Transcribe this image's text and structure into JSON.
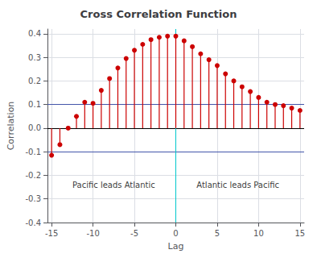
{
  "chart_data": {
    "type": "stem",
    "title": "Cross Correlation Function",
    "xlabel": "Lag",
    "ylabel": "Correlation",
    "x": [
      -15,
      -14,
      -13,
      -12,
      -11,
      -10,
      -9,
      -8,
      -7,
      -6,
      -5,
      -4,
      -3,
      -2,
      -1,
      0,
      1,
      2,
      3,
      4,
      5,
      6,
      7,
      8,
      9,
      10,
      11,
      12,
      13,
      14,
      15
    ],
    "values": [
      -0.115,
      -0.07,
      0.0,
      0.05,
      0.11,
      0.105,
      0.16,
      0.21,
      0.255,
      0.295,
      0.33,
      0.355,
      0.375,
      0.385,
      0.39,
      0.39,
      0.37,
      0.345,
      0.315,
      0.29,
      0.265,
      0.23,
      0.2,
      0.175,
      0.155,
      0.13,
      0.11,
      0.1,
      0.095,
      0.085,
      0.075
    ],
    "color": "#cc0000",
    "marker": "o",
    "xlim": [
      -15.5,
      15.5
    ],
    "ylim": [
      -0.4,
      0.42
    ],
    "xticks": [
      -15,
      -10,
      -5,
      0,
      5,
      10,
      15
    ],
    "yticks": [
      -0.4,
      -0.3,
      -0.2,
      -0.1,
      {
        "value": 0,
        "label": "0.0"
      },
      0.1,
      0.2,
      0.3,
      0.4
    ],
    "grid": true,
    "hlines": [
      {
        "y": 0.1,
        "color": "#4455aa"
      },
      {
        "y": -0.1,
        "color": "#4455aa"
      },
      {
        "y": 0,
        "color": "#000000"
      }
    ],
    "vlines": [
      {
        "x": 0,
        "color": "#00c8cc"
      }
    ],
    "annotations": [
      {
        "text": "Pacific leads Atlantic",
        "x": -7.5,
        "y": -0.24
      },
      {
        "text": "Atlantic leads Pacific",
        "x": 7.5,
        "y": -0.24
      }
    ]
  }
}
